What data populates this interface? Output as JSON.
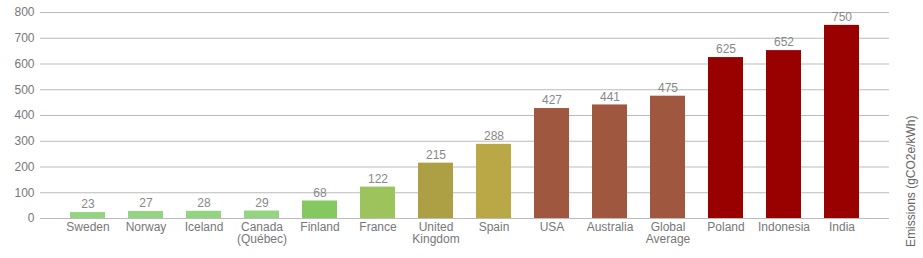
{
  "chart_data": {
    "type": "bar",
    "categories": [
      "Sweden",
      "Norway",
      "Iceland",
      "Canada (Québec)",
      "Finland",
      "France",
      "United Kingdom",
      "Spain",
      "USA",
      "Australia",
      "Global Average",
      "Poland",
      "Indonesia",
      "India"
    ],
    "values": [
      23,
      27,
      28,
      29,
      68,
      122,
      215,
      288,
      427,
      441,
      475,
      625,
      652,
      750
    ],
    "colors": [
      "#92d47f",
      "#92d47f",
      "#92d47f",
      "#92d47f",
      "#86c860",
      "#9cc35c",
      "#ad9f44",
      "#b9a845",
      "#a0573f",
      "#a0573f",
      "#a0573f",
      "#990000",
      "#990000",
      "#990000"
    ],
    "y_label": "Emissions (gCO2e/kWh)",
    "ylim": [
      0,
      800
    ],
    "yticks": [
      0,
      100,
      200,
      300,
      400,
      500,
      600,
      700,
      800
    ],
    "grid": true,
    "data_labels": true
  }
}
